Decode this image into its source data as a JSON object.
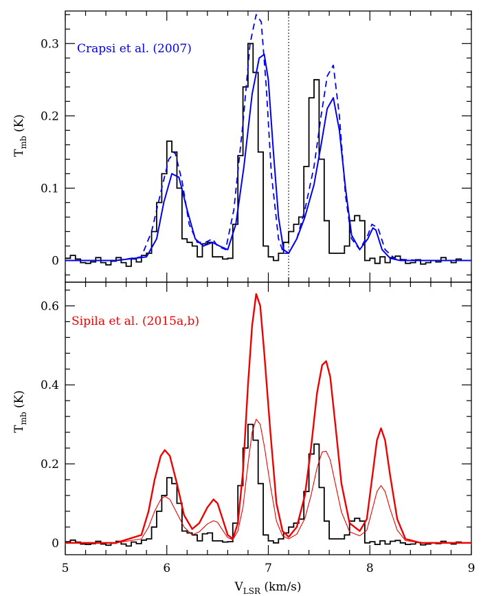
{
  "chart_data": [
    {
      "type": "line",
      "panel": "top",
      "title": "Crapsi et al. (2007)",
      "title_color": "#0000ee",
      "xlabel": "V_LSR (km/s)",
      "ylabel": "T_mb (K)",
      "xlim": [
        5,
        9
      ],
      "ylim": [
        -0.03,
        0.345
      ],
      "xticks": [
        5,
        6,
        7,
        8,
        9
      ],
      "xtick_labels": [
        "5",
        "6",
        "7",
        "8",
        "9"
      ],
      "yticks": [
        0,
        0.1,
        0.2,
        0.3
      ],
      "ytick_labels": [
        "0",
        "0.1",
        "0.2",
        "0.3"
      ],
      "vline_x": 7.2,
      "observed": {
        "color": "#000000",
        "style": "steps",
        "x": [
          5.0,
          5.05,
          5.1,
          5.15,
          5.2,
          5.25,
          5.3,
          5.35,
          5.4,
          5.45,
          5.5,
          5.55,
          5.6,
          5.65,
          5.7,
          5.75,
          5.8,
          5.85,
          5.9,
          5.95,
          6.0,
          6.05,
          6.1,
          6.15,
          6.2,
          6.25,
          6.3,
          6.35,
          6.4,
          6.45,
          6.5,
          6.55,
          6.6,
          6.65,
          6.7,
          6.75,
          6.8,
          6.85,
          6.9,
          6.95,
          7.0,
          7.05,
          7.1,
          7.15,
          7.2,
          7.25,
          7.3,
          7.35,
          7.4,
          7.45,
          7.5,
          7.55,
          7.6,
          7.65,
          7.7,
          7.75,
          7.8,
          7.85,
          7.9,
          7.95,
          8.0,
          8.05,
          8.1,
          8.15,
          8.2,
          8.25,
          8.3,
          8.35,
          8.4,
          8.45,
          8.5,
          8.55,
          8.6,
          8.65,
          8.7,
          8.75,
          8.8,
          8.85,
          8.9,
          8.95
        ],
        "y": [
          0.003,
          0.007,
          0.002,
          -0.003,
          -0.004,
          -0.002,
          0.004,
          -0.003,
          -0.006,
          -0.001,
          0.004,
          -0.003,
          -0.008,
          0.002,
          -0.002,
          0.007,
          0.01,
          0.04,
          0.08,
          0.12,
          0.165,
          0.15,
          0.1,
          0.03,
          0.025,
          0.02,
          0.005,
          0.023,
          0.025,
          0.005,
          0.005,
          0.002,
          0.003,
          0.05,
          0.145,
          0.24,
          0.3,
          0.26,
          0.15,
          0.02,
          0.005,
          0.0,
          0.01,
          0.025,
          0.04,
          0.05,
          0.06,
          0.13,
          0.225,
          0.25,
          0.14,
          0.055,
          0.01,
          0.01,
          0.01,
          0.02,
          0.055,
          0.062,
          0.055,
          0.0,
          0.003,
          -0.004,
          0.005,
          -0.003,
          0.004,
          0.006,
          0.0,
          -0.004,
          -0.003,
          0.001,
          -0.005,
          -0.003,
          0.0,
          -0.002,
          0.004,
          0.0,
          -0.003,
          0.002,
          0.0,
          0.0
        ]
      },
      "model_solid": {
        "color": "#0000ee",
        "style": "solid",
        "x": [
          5.0,
          5.5,
          5.8,
          5.9,
          5.97,
          6.05,
          6.12,
          6.2,
          6.28,
          6.36,
          6.45,
          6.52,
          6.6,
          6.68,
          6.76,
          6.84,
          6.91,
          6.96,
          7.0,
          7.05,
          7.1,
          7.15,
          7.2,
          7.28,
          7.36,
          7.45,
          7.52,
          7.58,
          7.64,
          7.7,
          7.76,
          7.82,
          7.9,
          7.98,
          8.03,
          8.06,
          8.12,
          8.2,
          8.3,
          8.5,
          9.0
        ],
        "y": [
          0.0,
          0.0,
          0.005,
          0.03,
          0.08,
          0.12,
          0.115,
          0.07,
          0.03,
          0.02,
          0.025,
          0.02,
          0.015,
          0.05,
          0.13,
          0.23,
          0.28,
          0.285,
          0.25,
          0.15,
          0.06,
          0.015,
          0.01,
          0.03,
          0.06,
          0.105,
          0.16,
          0.21,
          0.225,
          0.18,
          0.1,
          0.035,
          0.015,
          0.03,
          0.045,
          0.042,
          0.015,
          0.003,
          0.0,
          0.0,
          0.0
        ]
      },
      "model_dashed": {
        "color": "#0000ee",
        "style": "dashed",
        "x": [
          5.0,
          5.5,
          5.75,
          5.85,
          5.95,
          6.02,
          6.08,
          6.15,
          6.22,
          6.3,
          6.38,
          6.45,
          6.5,
          6.58,
          6.66,
          6.75,
          6.82,
          6.88,
          6.93,
          6.98,
          7.03,
          7.1,
          7.15,
          7.2,
          7.28,
          7.36,
          7.45,
          7.52,
          7.58,
          7.64,
          7.7,
          7.76,
          7.82,
          7.9,
          7.98,
          8.02,
          8.08,
          8.15,
          8.25,
          8.5,
          9.0
        ],
        "y": [
          0.0,
          0.0,
          0.005,
          0.04,
          0.1,
          0.14,
          0.15,
          0.11,
          0.05,
          0.025,
          0.025,
          0.03,
          0.02,
          0.015,
          0.07,
          0.19,
          0.3,
          0.34,
          0.33,
          0.24,
          0.12,
          0.03,
          0.01,
          0.01,
          0.03,
          0.07,
          0.13,
          0.2,
          0.255,
          0.27,
          0.2,
          0.09,
          0.03,
          0.015,
          0.035,
          0.05,
          0.045,
          0.015,
          0.002,
          0.0,
          0.0
        ]
      }
    },
    {
      "type": "line",
      "panel": "bottom",
      "title": "Sipila et al. (2015a,b)",
      "title_color": "#ee0000",
      "xlabel": "V_LSR (km/s)",
      "ylabel": "T_mb (K)",
      "xlim": [
        5,
        9
      ],
      "ylim": [
        -0.03,
        0.66
      ],
      "xticks": [
        5,
        6,
        7,
        8,
        9
      ],
      "xtick_labels": [
        "5",
        "6",
        "7",
        "8",
        "9"
      ],
      "yticks": [
        0,
        0.2,
        0.4,
        0.6
      ],
      "ytick_labels": [
        "0",
        "0.2",
        "0.4",
        "0.6"
      ],
      "observed": {
        "color": "#000000",
        "style": "steps",
        "x": [
          5.0,
          5.05,
          5.1,
          5.15,
          5.2,
          5.25,
          5.3,
          5.35,
          5.4,
          5.45,
          5.5,
          5.55,
          5.6,
          5.65,
          5.7,
          5.75,
          5.8,
          5.85,
          5.9,
          5.95,
          6.0,
          6.05,
          6.1,
          6.15,
          6.2,
          6.25,
          6.3,
          6.35,
          6.4,
          6.45,
          6.5,
          6.55,
          6.6,
          6.65,
          6.7,
          6.75,
          6.8,
          6.85,
          6.9,
          6.95,
          7.0,
          7.05,
          7.1,
          7.15,
          7.2,
          7.25,
          7.3,
          7.35,
          7.4,
          7.45,
          7.5,
          7.55,
          7.6,
          7.65,
          7.7,
          7.75,
          7.8,
          7.85,
          7.9,
          7.95,
          8.0,
          8.05,
          8.1,
          8.15,
          8.2,
          8.25,
          8.3,
          8.35,
          8.4,
          8.45,
          8.5,
          8.55,
          8.6,
          8.65,
          8.7,
          8.75,
          8.8,
          8.85,
          8.9,
          8.95
        ],
        "y": [
          0.003,
          0.007,
          0.002,
          -0.003,
          -0.004,
          -0.002,
          0.004,
          -0.003,
          -0.006,
          -0.001,
          0.004,
          -0.003,
          -0.008,
          0.002,
          -0.002,
          0.007,
          0.01,
          0.04,
          0.08,
          0.12,
          0.165,
          0.15,
          0.1,
          0.03,
          0.025,
          0.02,
          0.005,
          0.023,
          0.025,
          0.005,
          0.005,
          0.002,
          0.003,
          0.05,
          0.145,
          0.24,
          0.3,
          0.26,
          0.15,
          0.02,
          0.005,
          0.0,
          0.01,
          0.025,
          0.04,
          0.05,
          0.06,
          0.13,
          0.225,
          0.25,
          0.14,
          0.055,
          0.01,
          0.01,
          0.01,
          0.02,
          0.055,
          0.062,
          0.055,
          0.0,
          0.003,
          -0.004,
          0.005,
          -0.003,
          0.004,
          0.006,
          0.0,
          -0.004,
          -0.003,
          0.001,
          -0.005,
          -0.003,
          0.0,
          -0.002,
          0.004,
          0.0,
          -0.003,
          0.002,
          0.0,
          0.0
        ]
      },
      "model_thick": {
        "color": "#ee0000",
        "style": "solid-thick",
        "x": [
          5.0,
          5.5,
          5.75,
          5.82,
          5.88,
          5.94,
          5.98,
          6.03,
          6.1,
          6.17,
          6.25,
          6.32,
          6.4,
          6.46,
          6.5,
          6.55,
          6.6,
          6.65,
          6.7,
          6.75,
          6.8,
          6.84,
          6.88,
          6.92,
          6.96,
          7.02,
          7.08,
          7.14,
          7.2,
          7.28,
          7.36,
          7.42,
          7.48,
          7.53,
          7.57,
          7.61,
          7.66,
          7.72,
          7.8,
          7.9,
          7.97,
          8.02,
          8.07,
          8.11,
          8.15,
          8.2,
          8.27,
          8.35,
          8.5,
          9.0
        ],
        "y": [
          0.0,
          0.0,
          0.02,
          0.08,
          0.16,
          0.22,
          0.235,
          0.22,
          0.15,
          0.07,
          0.035,
          0.05,
          0.09,
          0.11,
          0.1,
          0.06,
          0.02,
          0.01,
          0.05,
          0.18,
          0.4,
          0.55,
          0.63,
          0.6,
          0.48,
          0.28,
          0.1,
          0.03,
          0.015,
          0.04,
          0.12,
          0.24,
          0.38,
          0.45,
          0.46,
          0.42,
          0.3,
          0.15,
          0.05,
          0.03,
          0.06,
          0.16,
          0.26,
          0.29,
          0.26,
          0.17,
          0.06,
          0.01,
          0.0,
          0.0
        ]
      },
      "model_thin": {
        "color": "#ee0000",
        "style": "solid-thin",
        "x": [
          5.0,
          5.5,
          5.75,
          5.82,
          5.88,
          5.94,
          5.98,
          6.03,
          6.1,
          6.17,
          6.25,
          6.32,
          6.4,
          6.46,
          6.5,
          6.55,
          6.6,
          6.65,
          6.7,
          6.75,
          6.8,
          6.84,
          6.88,
          6.92,
          6.96,
          7.02,
          7.08,
          7.14,
          7.2,
          7.28,
          7.36,
          7.42,
          7.48,
          7.53,
          7.57,
          7.61,
          7.66,
          7.72,
          7.8,
          7.9,
          7.97,
          8.02,
          8.07,
          8.11,
          8.15,
          8.2,
          8.27,
          8.35,
          8.5,
          9.0
        ],
        "y": [
          0.0,
          0.0,
          0.01,
          0.04,
          0.08,
          0.11,
          0.118,
          0.11,
          0.075,
          0.04,
          0.02,
          0.028,
          0.048,
          0.056,
          0.052,
          0.032,
          0.013,
          0.008,
          0.03,
          0.09,
          0.2,
          0.28,
          0.313,
          0.3,
          0.245,
          0.145,
          0.055,
          0.018,
          0.01,
          0.022,
          0.062,
          0.12,
          0.19,
          0.23,
          0.232,
          0.21,
          0.15,
          0.078,
          0.028,
          0.018,
          0.032,
          0.08,
          0.13,
          0.145,
          0.13,
          0.085,
          0.032,
          0.006,
          0.0,
          0.0
        ]
      }
    }
  ]
}
